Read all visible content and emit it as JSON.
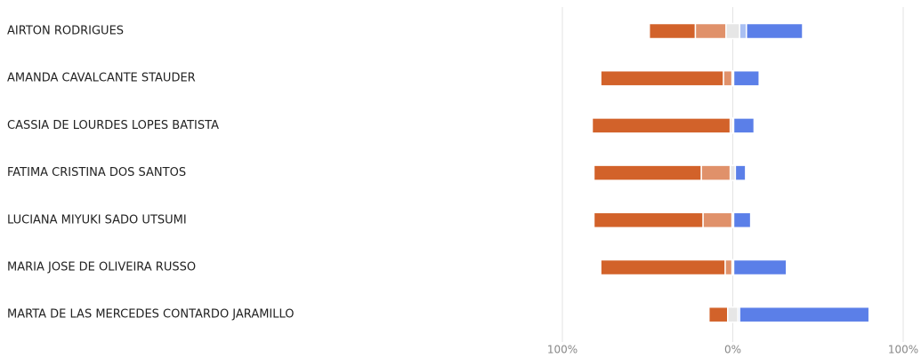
{
  "chart_data": {
    "type": "diverging-bar",
    "categories": [
      "AIRTON RODRIGUES",
      "AMANDA CAVALCANTE STAUDER",
      "CASSIA DE LOURDES LOPES BATISTA",
      "FATIMA CRISTINA DOS SANTOS",
      "LUCIANA MIYUKI SADO UTSUMI",
      "MARIA JOSE DE OLIVEIRA RUSSO",
      "MARTA DE LAS MERCEDES CONTARDO JARAMILLO"
    ],
    "series": [
      {
        "color": "#d2622a",
        "values": [
          27,
          72,
          81,
          63,
          64,
          73,
          11
        ]
      },
      {
        "color": "#e0916a",
        "values": [
          18,
          5,
          1,
          17,
          17,
          4,
          0
        ]
      },
      {
        "color": "#e6e6e6",
        "values": [
          8,
          1,
          1,
          3,
          1,
          1,
          6
        ]
      },
      {
        "color": "#a9bff2",
        "values": [
          4,
          0,
          0,
          0,
          0,
          0,
          1
        ]
      },
      {
        "color": "#5b7fe8",
        "values": [
          33,
          15,
          12,
          6,
          10,
          31,
          76
        ]
      }
    ],
    "xlim": [
      -100,
      100
    ],
    "xticks": [
      {
        "value": -100,
        "label": "100%"
      },
      {
        "value": 0,
        "label": "0%"
      },
      {
        "value": 100,
        "label": "100%"
      }
    ],
    "grid": true
  }
}
